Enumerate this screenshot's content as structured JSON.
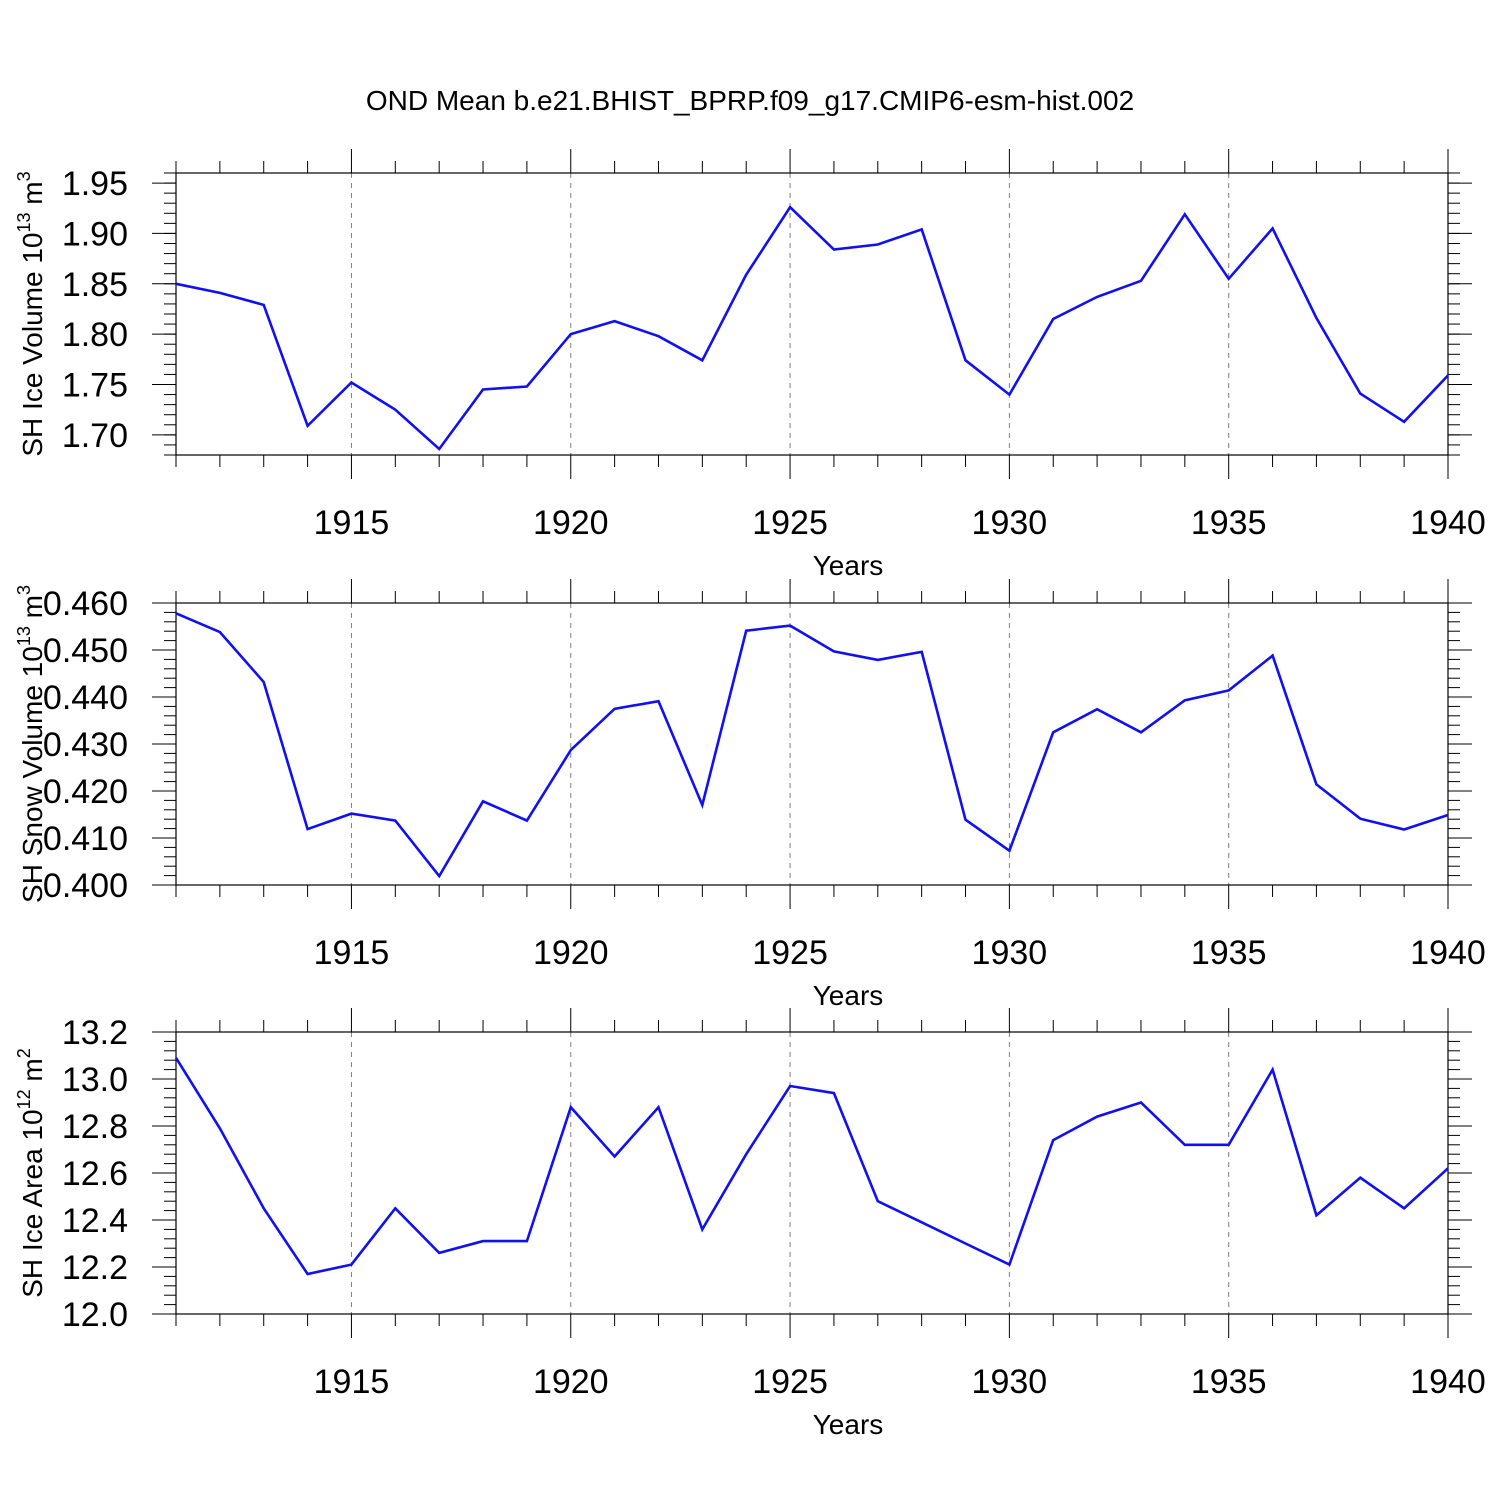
{
  "title": "OND Mean b.e21.BHIST_BPRP.f09_g17.CMIP6-esm-hist.002",
  "colors": {
    "line": "#1010f0",
    "axis": "#000000",
    "grid": "#7f7f7f"
  },
  "chart_data": [
    {
      "type": "line",
      "title": "OND Mean b.e21.BHIST_BPRP.f09_g17.CMIP6-esm-hist.002",
      "xlabel": "Years",
      "ylabel": "SH Ice Volume 10",
      "ylabel_sup": "13",
      "ylabel_unit": " m",
      "ylabel_unit_sup": "3",
      "xlim": [
        1911,
        1940
      ],
      "ylim": [
        1.68,
        1.96
      ],
      "xticks": [
        1915,
        1920,
        1925,
        1930,
        1935,
        1940
      ],
      "xtick_labels": [
        "1915",
        "1920",
        "1925",
        "1930",
        "1935",
        "1940"
      ],
      "yticks": [
        1.7,
        1.75,
        1.8,
        1.85,
        1.9,
        1.95
      ],
      "ytick_labels": [
        "1.70",
        "1.75",
        "1.80",
        "1.85",
        "1.90",
        "1.95"
      ],
      "x_minor_step": 1,
      "y_minor_step": 0.01,
      "grid": "x-dashed",
      "series": [
        {
          "name": "SH Ice Volume",
          "x": [
            1911,
            1912,
            1913,
            1914,
            1915,
            1916,
            1917,
            1918,
            1919,
            1920,
            1921,
            1922,
            1923,
            1924,
            1925,
            1926,
            1927,
            1928,
            1929,
            1930,
            1931,
            1932,
            1933,
            1934,
            1935,
            1936,
            1937,
            1938,
            1939,
            1940
          ],
          "values": [
            1.85,
            1.841,
            1.829,
            1.709,
            1.752,
            1.725,
            1.686,
            1.745,
            1.748,
            1.8,
            1.813,
            1.798,
            1.774,
            1.859,
            1.926,
            1.884,
            1.889,
            1.904,
            1.774,
            1.74,
            1.815,
            1.837,
            1.853,
            1.919,
            1.855,
            1.905,
            1.816,
            1.741,
            1.713,
            1.759
          ]
        }
      ]
    },
    {
      "type": "line",
      "xlabel": "Years",
      "ylabel": "SH Snow Volume 10",
      "ylabel_sup": "13",
      "ylabel_unit": " m",
      "ylabel_unit_sup": "3",
      "xlim": [
        1911,
        1940
      ],
      "ylim": [
        0.4,
        0.46
      ],
      "xticks": [
        1915,
        1920,
        1925,
        1930,
        1935,
        1940
      ],
      "xtick_labels": [
        "1915",
        "1920",
        "1925",
        "1930",
        "1935",
        "1940"
      ],
      "yticks": [
        0.4,
        0.41,
        0.42,
        0.43,
        0.44,
        0.45,
        0.46
      ],
      "ytick_labels": [
        "0.400",
        "0.410",
        "0.420",
        "0.430",
        "0.440",
        "0.450",
        "0.460"
      ],
      "x_minor_step": 1,
      "y_minor_step": 0.002,
      "grid": "x-dashed",
      "series": [
        {
          "name": "SH Snow Volume",
          "x": [
            1911,
            1912,
            1913,
            1914,
            1915,
            1916,
            1917,
            1918,
            1919,
            1920,
            1921,
            1922,
            1923,
            1924,
            1925,
            1926,
            1927,
            1928,
            1929,
            1930,
            1931,
            1932,
            1933,
            1934,
            1935,
            1936,
            1937,
            1938,
            1939,
            1940
          ],
          "values": [
            0.4578,
            0.4538,
            0.4432,
            0.4119,
            0.4152,
            0.4137,
            0.4019,
            0.4178,
            0.4137,
            0.4287,
            0.4375,
            0.4391,
            0.417,
            0.4541,
            0.4552,
            0.4497,
            0.4479,
            0.4496,
            0.4139,
            0.4073,
            0.4325,
            0.4374,
            0.4325,
            0.4393,
            0.4414,
            0.4488,
            0.4214,
            0.4141,
            0.4118,
            0.4149
          ]
        }
      ]
    },
    {
      "type": "line",
      "xlabel": "Years",
      "ylabel": "SH Ice Area 10",
      "ylabel_sup": "12",
      "ylabel_unit": " m",
      "ylabel_unit_sup": "2",
      "xlim": [
        1911,
        1940
      ],
      "ylim": [
        12.0,
        13.2
      ],
      "xticks": [
        1915,
        1920,
        1925,
        1930,
        1935,
        1940
      ],
      "xtick_labels": [
        "1915",
        "1920",
        "1925",
        "1930",
        "1935",
        "1940"
      ],
      "yticks": [
        12.0,
        12.2,
        12.4,
        12.6,
        12.8,
        13.0,
        13.2
      ],
      "ytick_labels": [
        "12.0",
        "12.2",
        "12.4",
        "12.6",
        "12.8",
        "13.0",
        "13.2"
      ],
      "x_minor_step": 1,
      "y_minor_step": 0.04,
      "grid": "x-dashed",
      "series": [
        {
          "name": "SH Ice Area",
          "x": [
            1911,
            1912,
            1913,
            1914,
            1915,
            1916,
            1917,
            1918,
            1919,
            1920,
            1921,
            1922,
            1923,
            1924,
            1925,
            1926,
            1927,
            1928,
            1929,
            1930,
            1931,
            1932,
            1933,
            1934,
            1935,
            1936,
            1937,
            1938,
            1939,
            1940
          ],
          "values": [
            13.09,
            12.79,
            12.45,
            12.17,
            12.21,
            12.45,
            12.26,
            12.31,
            12.31,
            12.88,
            12.67,
            12.88,
            12.36,
            12.68,
            12.97,
            12.94,
            12.48,
            12.39,
            12.3,
            12.21,
            12.74,
            12.84,
            12.9,
            12.72,
            12.72,
            13.04,
            12.42,
            12.58,
            12.45,
            12.62
          ]
        }
      ]
    }
  ]
}
